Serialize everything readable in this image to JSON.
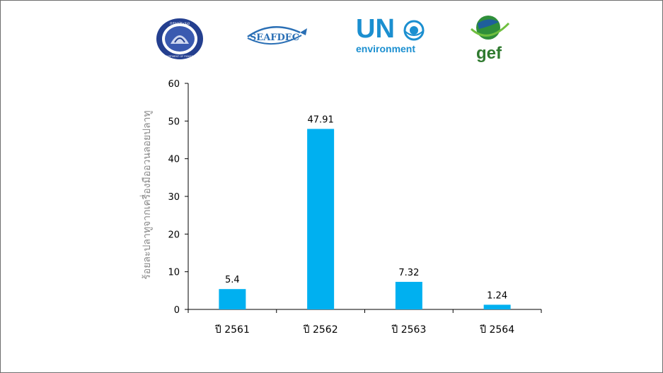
{
  "logos": {
    "dof": {
      "name": "department-of-fisheries-logo",
      "thai_text": "กรมประมง",
      "en_text": "DEPARTMENT OF FISHERIES"
    },
    "seafdec": {
      "text": "SEAFDEC"
    },
    "unep": {
      "line1": "UN",
      "line2": "environment"
    },
    "gef": {
      "text": "gef"
    }
  },
  "chart_data": {
    "type": "bar",
    "categories": [
      "ปี 2561",
      "ปี 2562",
      "ปี 2563",
      "ปี 2564"
    ],
    "values": [
      5.4,
      47.91,
      7.32,
      1.24
    ],
    "data_labels": [
      "5.4",
      "47.91",
      "7.32",
      "1.24"
    ],
    "title": "",
    "xlabel": "",
    "ylabel": "ร้อยละปลาทูจากเครื่องมืออวนลอยปลาทู",
    "ylim": [
      0,
      60
    ],
    "yticks": [
      0,
      10,
      20,
      30,
      40,
      50,
      60
    ],
    "grid": false,
    "bar_color": "#00b0f0"
  }
}
